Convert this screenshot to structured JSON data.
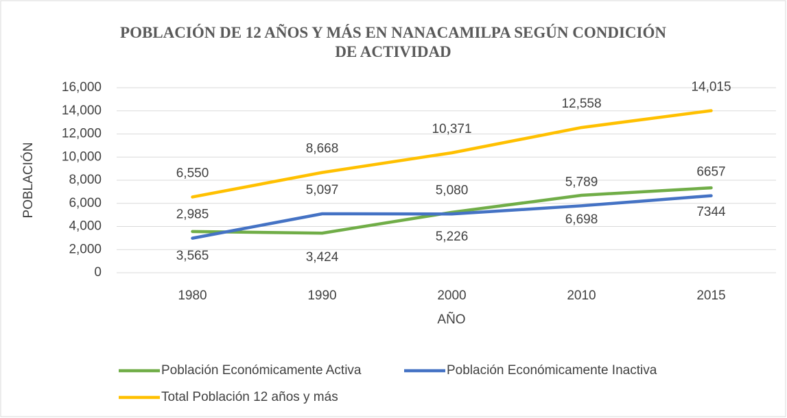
{
  "chart_data": {
    "type": "line",
    "title": "POBLACIÓN DE 12 AÑOS Y MÁS EN NANACAMILPA SEGÚN CONDICIÓN DE ACTIVIDAD",
    "x_label": "AÑO",
    "y_label": "POBLACIÓN",
    "categories": [
      "1980",
      "1990",
      "2000",
      "2010",
      "2015"
    ],
    "series": [
      {
        "name": "Población Económicamente Activa",
        "color": "#70ad47",
        "values": [
          3565,
          3424,
          5226,
          6698,
          7344
        ],
        "value_labels": [
          "3,565",
          "3,424",
          "5,226",
          "6,698",
          "7344"
        ]
      },
      {
        "name": "Población Económicamente Inactiva",
        "color": "#4472c4",
        "values": [
          2985,
          5097,
          5080,
          5789,
          6657
        ],
        "value_labels": [
          "2,985",
          "5,097",
          "5,080",
          "5,789",
          "6657"
        ]
      },
      {
        "name": "Total Población 12 años y más",
        "color": "#ffc000",
        "values": [
          6550,
          8668,
          10371,
          12558,
          14015
        ],
        "value_labels": [
          "6,550",
          "8,668",
          "10,371",
          "12,558",
          "14,015"
        ]
      }
    ],
    "ylim": [
      0,
      16000
    ],
    "yticks": [
      0,
      {
        "value": 2000,
        "label": "2,000"
      },
      {
        "value": 4000,
        "label": "4,000"
      },
      {
        "value": 6000,
        "label": "6,000"
      },
      {
        "value": 8000,
        "label": "8,000"
      },
      {
        "value": 10000,
        "label": "10,000"
      },
      {
        "value": 12000,
        "label": "12,000"
      },
      {
        "value": 14000,
        "label": "14,000"
      },
      {
        "value": 16000,
        "label": "16,000"
      }
    ],
    "grid": true
  }
}
